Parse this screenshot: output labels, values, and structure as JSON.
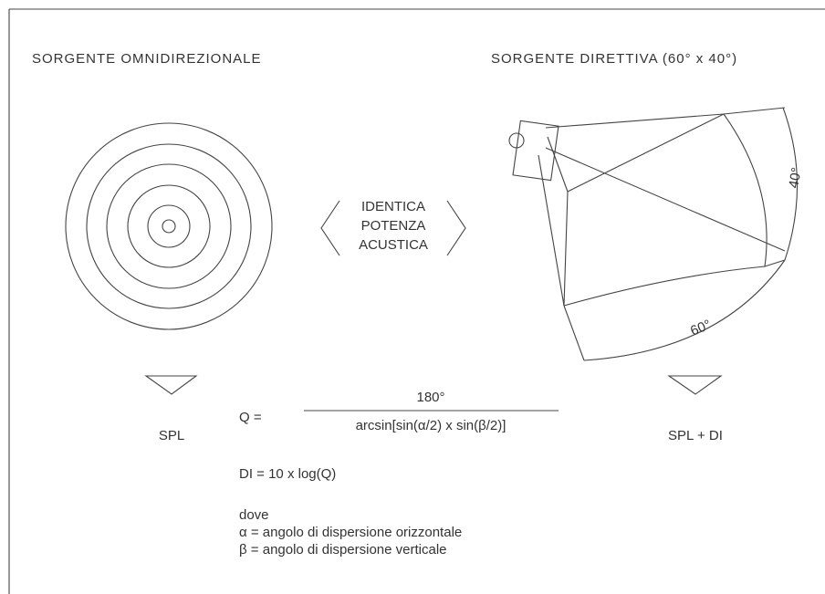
{
  "left": {
    "title": "SORGENTE OMNIDIREZIONALE",
    "label": "SPL"
  },
  "right": {
    "title": "SORGENTE DIRETTIVA (60° x 40°)",
    "label": "SPL + DI",
    "angle_vertical": "40°",
    "angle_horizontal": "60°"
  },
  "center": {
    "lines": [
      "IDENTICA",
      "POTENZA",
      "ACUSTICA"
    ]
  },
  "formula": {
    "lhs": "Q =",
    "numerator": "180°",
    "denominator": "arcsin[sin(α/2) x sin(β/2)]",
    "di": "DI = 10 x log(Q)",
    "where": "dove",
    "legend": [
      "α = angolo di dispersione orizzontale",
      "β = angolo di dispersione verticale"
    ]
  }
}
